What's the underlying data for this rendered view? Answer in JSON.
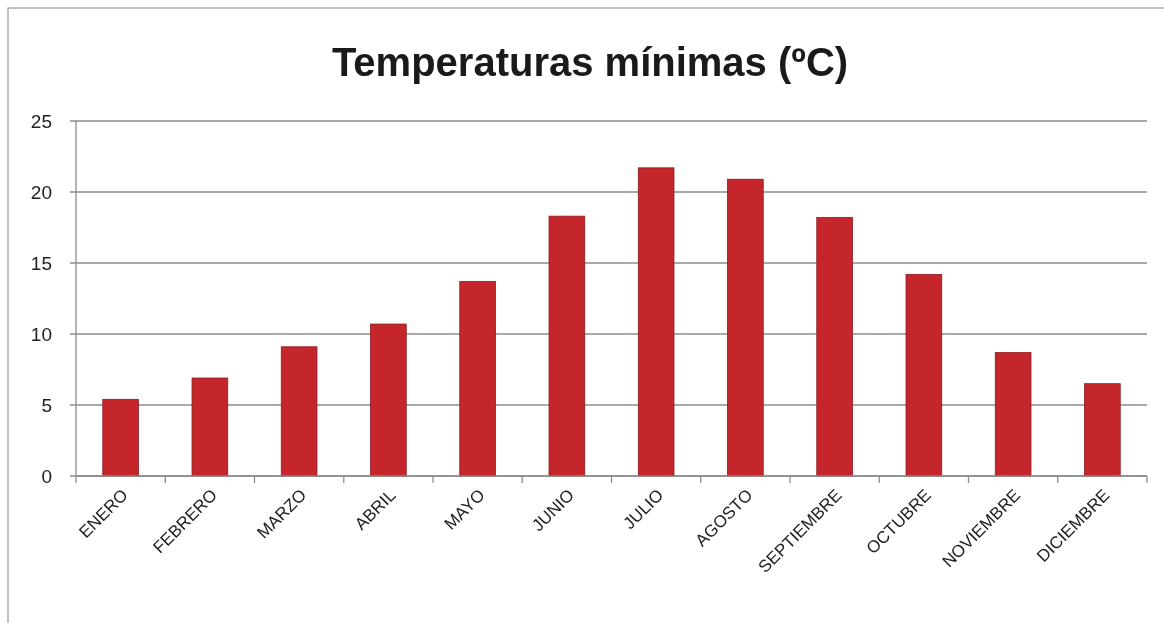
{
  "chart_data": {
    "type": "bar",
    "title": "Temperaturas mínimas (ºC)",
    "categories": [
      "ENERO",
      "FEBRERO",
      "MARZO",
      "ABRIL",
      "MAYO",
      "JUNIO",
      "JULIO",
      "AGOSTO",
      "SEPTIEMBRE",
      "OCTUBRE",
      "NOVIEMBRE",
      "DICIEMBRE"
    ],
    "values": [
      5.4,
      6.9,
      9.1,
      10.7,
      13.7,
      18.3,
      21.7,
      20.9,
      18.2,
      14.2,
      8.7,
      6.5
    ],
    "color": "#c4262b",
    "ylim": [
      0,
      25
    ],
    "yticks": [
      0,
      5,
      10,
      15,
      20,
      25
    ],
    "grid": "y"
  }
}
